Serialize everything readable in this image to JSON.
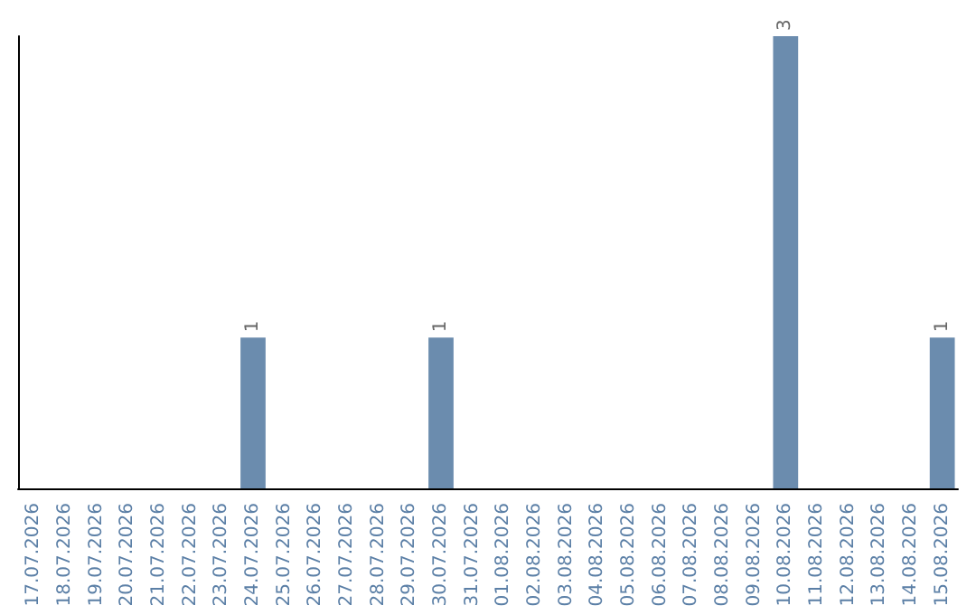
{
  "chart_data": {
    "type": "bar",
    "categories": [
      "17.07.2026",
      "18.07.2026",
      "19.07.2026",
      "20.07.2026",
      "21.07.2026",
      "22.07.2026",
      "23.07.2026",
      "24.07.2026",
      "25.07.2026",
      "26.07.2026",
      "27.07.2026",
      "28.07.2026",
      "29.07.2026",
      "30.07.2026",
      "31.07.2026",
      "01.08.2026",
      "02.08.2026",
      "03.08.2026",
      "04.08.2026",
      "05.08.2026",
      "06.08.2026",
      "07.08.2026",
      "08.08.2026",
      "09.08.2026",
      "10.08.2026",
      "11.08.2026",
      "12.08.2026",
      "13.08.2026",
      "14.08.2026",
      "15.08.2026"
    ],
    "values": [
      0,
      0,
      0,
      0,
      0,
      0,
      0,
      1,
      0,
      0,
      0,
      0,
      0,
      1,
      0,
      0,
      0,
      0,
      0,
      0,
      0,
      0,
      0,
      0,
      3,
      0,
      0,
      0,
      0,
      1
    ],
    "value_labels": [
      null,
      null,
      null,
      null,
      null,
      null,
      null,
      "1",
      null,
      null,
      null,
      null,
      null,
      "1",
      null,
      null,
      null,
      null,
      null,
      null,
      null,
      null,
      null,
      null,
      "3",
      null,
      null,
      null,
      null,
      "1"
    ],
    "color": "#6b8cae"
  }
}
